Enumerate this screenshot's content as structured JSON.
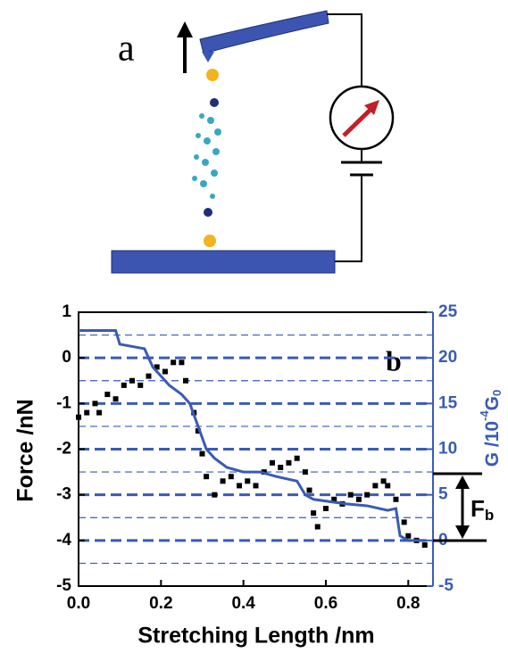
{
  "panel_a": {
    "label": "a"
  },
  "chart_data": {
    "type": "line",
    "panel_label": "b",
    "xlabel": "Stretching Length /nm",
    "ylabel": "Force /nN",
    "y2label": {
      "text": "G /10",
      "sup": "-4",
      "mid": "G",
      "sub": "0"
    },
    "xlim": [
      0,
      0.86
    ],
    "xticks": [
      {
        "value": 0,
        "label": "0.0"
      },
      0.2,
      0.4,
      0.6,
      0.8
    ],
    "ylim": [
      -5,
      1
    ],
    "yticks": [
      -5,
      -4,
      -3,
      -2,
      -1,
      0,
      1
    ],
    "y2lim": [
      -5,
      25
    ],
    "y2ticks": [
      -5,
      0,
      5,
      10,
      15,
      20,
      25
    ],
    "grid": true,
    "series": [
      {
        "color": "#000000",
        "mode": "markers",
        "x": [
          0,
          0.02,
          0.04,
          0.05,
          0.07,
          0.09,
          0.11,
          0.13,
          0.15,
          0.17,
          0.19,
          0.21,
          0.23,
          0.25,
          0.26,
          0.28,
          0.29,
          0.3,
          0.31,
          0.33,
          0.35,
          0.37,
          0.39,
          0.41,
          0.43,
          0.45,
          0.47,
          0.49,
          0.51,
          0.53,
          0.55,
          0.56,
          0.57,
          0.58,
          0.6,
          0.62,
          0.64,
          0.66,
          0.68,
          0.7,
          0.72,
          0.74,
          0.75,
          0.77,
          0.79,
          0.8,
          0.82,
          0.84
        ],
        "values": [
          -1.3,
          -1.2,
          -1,
          -1.2,
          -0.8,
          -0.9,
          -0.6,
          -0.5,
          -0.6,
          -0.4,
          -0.2,
          -0.3,
          -0.1,
          -0.1,
          -0.5,
          -1.2,
          -1.6,
          -2.1,
          -2.6,
          -3,
          -2.7,
          -2.6,
          -2.8,
          -2.7,
          -2.8,
          -2.5,
          -2.3,
          -2.4,
          -2.3,
          -2.2,
          -2.5,
          -2.9,
          -3.4,
          -3.7,
          -3.3,
          -3.1,
          -3.2,
          -3,
          -3.1,
          -3,
          -2.8,
          -2.7,
          -2.8,
          -3.1,
          -3.6,
          -3.9,
          -4,
          -4.1
        ]
      },
      {
        "color": "#3a5bb5",
        "mode": "line",
        "axis": "y2",
        "x": [
          0,
          0.09,
          0.1,
          0.16,
          0.18,
          0.22,
          0.25,
          0.27,
          0.29,
          0.31,
          0.33,
          0.36,
          0.4,
          0.44,
          0.48,
          0.53,
          0.55,
          0.57,
          0.65,
          0.7,
          0.75,
          0.77,
          0.78,
          0.8,
          0.84
        ],
        "values": [
          23,
          23,
          21.5,
          21,
          19,
          17,
          16,
          15,
          12.5,
          10,
          9,
          8,
          7.5,
          7.5,
          7,
          6.5,
          5,
          4.5,
          4,
          3.8,
          3.3,
          3.5,
          0.5,
          0,
          0
        ]
      }
    ],
    "annotation": {
      "text": "F",
      "sub": "b"
    }
  }
}
